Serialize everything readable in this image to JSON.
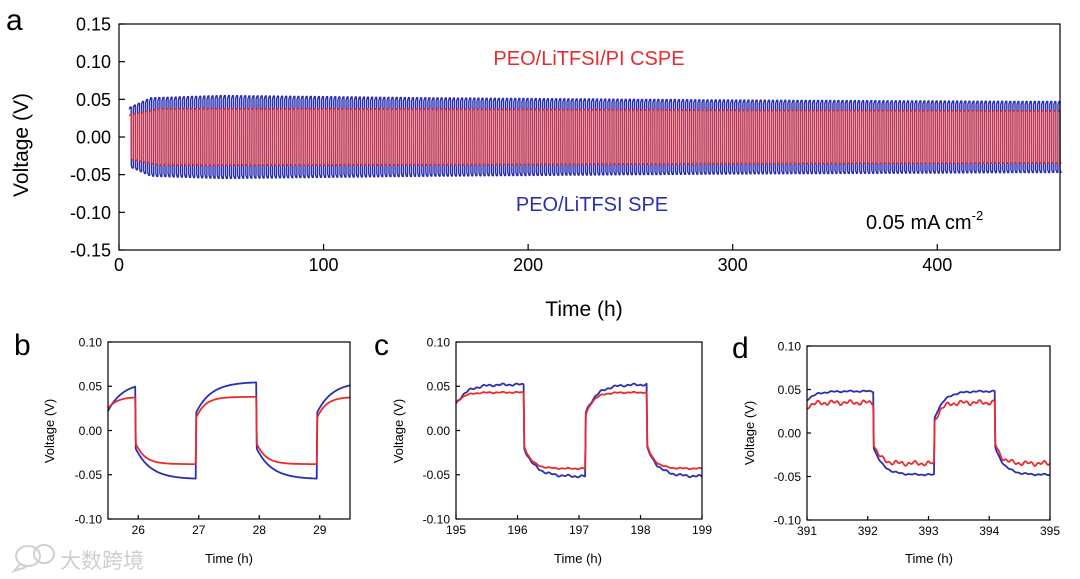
{
  "colors": {
    "spe": "#2a2fb0",
    "cspe": "#e82c2c",
    "axis": "#000000",
    "watermark": "#d6d6d6"
  },
  "watermark": {
    "text": "大数跨境",
    "icon": "chat-bubble-icon"
  },
  "chart_data": [
    {
      "id": "a",
      "panel_label": "a",
      "type": "line",
      "title": "",
      "xlabel": "Time (h)",
      "ylabel": "Voltage (V)",
      "xlim": [
        0,
        460
      ],
      "ylim": [
        -0.15,
        0.15
      ],
      "xticks": [
        0,
        100,
        200,
        300,
        400
      ],
      "xtick_labels": [
        "0",
        "100",
        "200",
        "300",
        "400"
      ],
      "yticks": [
        -0.15,
        -0.1,
        -0.05,
        0.0,
        0.05,
        0.1,
        0.15
      ],
      "ytick_labels": [
        "-0.15",
        "-0.10",
        "-0.05",
        "0.00",
        "0.05",
        "0.10",
        "0.15"
      ],
      "annotations": {
        "cspe_label": "PEO/LiTFSI/PI CSPE",
        "spe_label": "PEO/LiTFSI SPE",
        "current_density": "0.05 mA cm",
        "current_exp": "-2"
      },
      "series": [
        {
          "name": "PEO/LiTFSI SPE",
          "color_key": "spe",
          "period_h": 2,
          "start_h": 5,
          "end_h": 460,
          "amplitude_envelope": [
            [
              5,
              0.04
            ],
            [
              15,
              0.052
            ],
            [
              50,
              0.055
            ],
            [
              150,
              0.052
            ],
            [
              300,
              0.049
            ],
            [
              460,
              0.047
            ]
          ]
        },
        {
          "name": "PEO/LiTFSI/PI CSPE",
          "color_key": "cspe",
          "period_h": 2,
          "start_h": 5,
          "end_h": 460,
          "amplitude_envelope": [
            [
              5,
              0.03
            ],
            [
              20,
              0.038
            ],
            [
              100,
              0.038
            ],
            [
              300,
              0.036
            ],
            [
              460,
              0.035
            ]
          ]
        }
      ]
    },
    {
      "id": "b",
      "panel_label": "b",
      "type": "line",
      "xlabel": "Time (h)",
      "ylabel": "Voltage (V)",
      "xlim": [
        25.5,
        29.5
      ],
      "ylim": [
        -0.1,
        0.1
      ],
      "xticks": [
        26,
        27,
        28,
        29
      ],
      "xtick_labels": [
        "26",
        "27",
        "28",
        "29"
      ],
      "yticks": [
        -0.1,
        -0.05,
        0.0,
        0.05,
        0.1
      ],
      "ytick_labels": [
        "-0.10",
        "-0.05",
        "0.00",
        "0.05",
        "0.10"
      ],
      "series": [
        {
          "name": "PEO/LiTFSI SPE",
          "color_key": "spe",
          "phase_h": 0.45,
          "amplitude": 0.055,
          "start_value": 0.022,
          "tau": 0.25,
          "noise": 0
        },
        {
          "name": "PEO/LiTFSI/PI CSPE",
          "color_key": "cspe",
          "phase_h": 0.45,
          "amplitude": 0.038,
          "start_value": 0.025,
          "tau": 0.15,
          "noise": 0
        }
      ]
    },
    {
      "id": "c",
      "panel_label": "c",
      "type": "line",
      "xlabel": "Time (h)",
      "ylabel": "Voltage (V)",
      "xlim": [
        195,
        199
      ],
      "ylim": [
        -0.1,
        0.1
      ],
      "xticks": [
        195,
        196,
        197,
        198,
        199
      ],
      "xtick_labels": [
        "195",
        "196",
        "197",
        "198",
        "199"
      ],
      "yticks": [
        -0.1,
        -0.05,
        0.0,
        0.05,
        0.1
      ],
      "ytick_labels": [
        "-0.10",
        "-0.05",
        "0.00",
        "0.05",
        "0.10"
      ],
      "series": [
        {
          "name": "PEO/LiTFSI SPE",
          "color_key": "spe",
          "phase_h": 1.1,
          "amplitude": 0.052,
          "start_value": 0.03,
          "tau": 0.18,
          "noise": 0.0015
        },
        {
          "name": "PEO/LiTFSI/PI CSPE",
          "color_key": "cspe",
          "phase_h": 1.1,
          "amplitude": 0.043,
          "start_value": 0.03,
          "tau": 0.12,
          "noise": 0.0008
        }
      ]
    },
    {
      "id": "d",
      "panel_label": "d",
      "type": "line",
      "xlabel": "Time (h)",
      "ylabel": "Voltage (V)",
      "xlim": [
        391,
        395
      ],
      "ylim": [
        -0.1,
        0.1
      ],
      "xticks": [
        391,
        392,
        393,
        394,
        395
      ],
      "xtick_labels": [
        "391",
        "392",
        "393",
        "394",
        "395"
      ],
      "yticks": [
        -0.1,
        -0.05,
        0.0,
        0.05,
        0.1
      ],
      "ytick_labels": [
        "-0.10",
        "-0.05",
        "0.00",
        "0.05",
        "0.10"
      ],
      "series": [
        {
          "name": "PEO/LiTFSI SPE",
          "color_key": "spe",
          "phase_h": 1.1,
          "amplitude": 0.048,
          "start_value": 0.038,
          "tau": 0.15,
          "noise": 0.001
        },
        {
          "name": "PEO/LiTFSI/PI CSPE",
          "color_key": "cspe",
          "phase_h": 1.1,
          "amplitude": 0.035,
          "start_value": 0.03,
          "tau": 0.1,
          "noise": 0.003
        }
      ]
    }
  ]
}
